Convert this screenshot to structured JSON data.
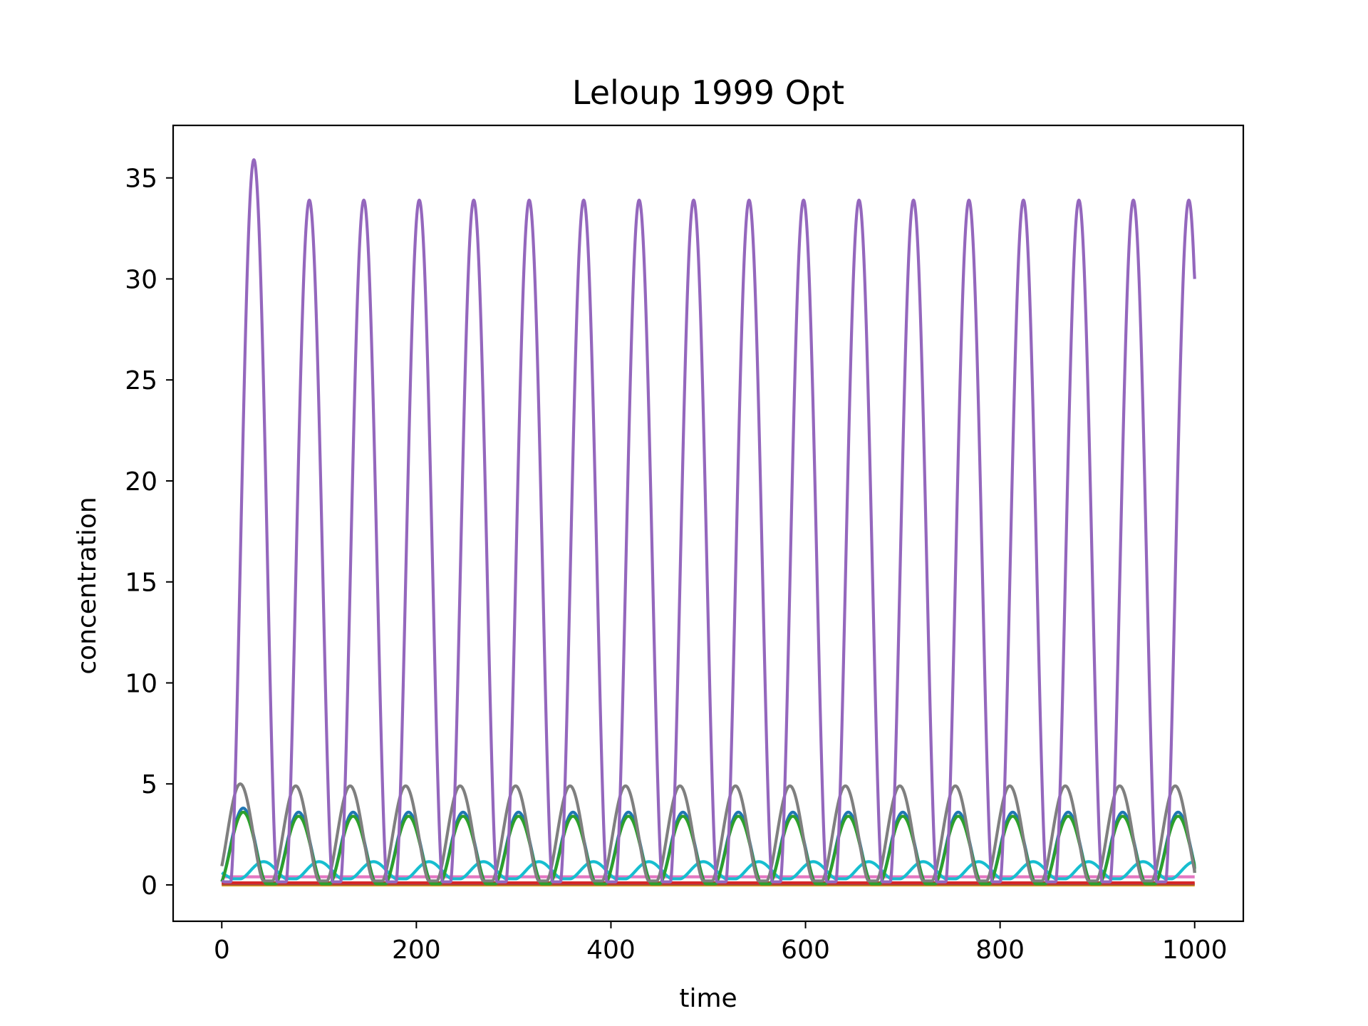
{
  "chart_data": {
    "type": "line",
    "title": "Leloup 1999 Opt",
    "xlabel": "time",
    "ylabel": "concentration",
    "xlim": [
      -50,
      1050
    ],
    "ylim": [
      -1.8,
      37.6
    ],
    "xticks": [
      0,
      200,
      400,
      600,
      800,
      1000
    ],
    "yticks": [
      0,
      5,
      10,
      15,
      20,
      25,
      30,
      35
    ],
    "xtick_labels": [
      "0",
      "200",
      "400",
      "600",
      "800",
      "1000"
    ],
    "ytick_labels": [
      "0",
      "5",
      "10",
      "15",
      "20",
      "25",
      "30",
      "35"
    ],
    "grid": false,
    "legend": "none",
    "period": 56.5,
    "series": [
      {
        "color": "#9467bd",
        "peak_times": [
          33,
          90,
          146,
          203,
          259,
          316,
          372,
          429,
          485,
          542,
          598,
          655,
          711,
          768,
          824,
          881,
          937,
          994
        ],
        "peak_values": [
          35.9,
          33.9,
          33.9,
          33.9,
          33.9,
          33.9,
          33.9,
          33.9,
          33.9,
          33.9,
          33.9,
          33.9,
          33.9,
          33.9,
          33.9,
          33.9,
          33.9,
          33.9
        ],
        "min_value": 0.15,
        "end_value": 30.0,
        "start_value": 0.2
      },
      {
        "color": "#7f7f7f",
        "peak_times": [
          19,
          76,
          132,
          189,
          245,
          302,
          358,
          415,
          471,
          528,
          584,
          641,
          697,
          754,
          810,
          867,
          923,
          980
        ],
        "peak_values": [
          5.0,
          4.9,
          4.9,
          4.9,
          4.9,
          4.9,
          4.9,
          4.9,
          4.9,
          4.9,
          4.9,
          4.9,
          4.9,
          4.9,
          4.9,
          4.9,
          4.9,
          4.9
        ],
        "min_value": 0.2,
        "end_value": 0.6,
        "start_value": 0.8
      },
      {
        "color": "#1f77b4",
        "peak_times": [
          22,
          79,
          135,
          192,
          248,
          305,
          361,
          418,
          474,
          531,
          587,
          644,
          700,
          757,
          813,
          870,
          926,
          983
        ],
        "peak_values": [
          3.8,
          3.6,
          3.6,
          3.6,
          3.6,
          3.6,
          3.6,
          3.6,
          3.6,
          3.6,
          3.6,
          3.6,
          3.6,
          3.6,
          3.6,
          3.6,
          3.6,
          3.6
        ],
        "min_value": 0.05,
        "end_value": 0.8,
        "start_value": 0.5
      },
      {
        "color": "#2ca02c",
        "peak_times": [
          22,
          79,
          135,
          192,
          248,
          305,
          361,
          418,
          474,
          531,
          587,
          644,
          700,
          757,
          813,
          870,
          926,
          983
        ],
        "peak_values": [
          3.6,
          3.4,
          3.4,
          3.4,
          3.4,
          3.4,
          3.4,
          3.4,
          3.4,
          3.4,
          3.4,
          3.4,
          3.4,
          3.4,
          3.4,
          3.4,
          3.4,
          3.4
        ],
        "min_value": 0.05,
        "end_value": 0.6,
        "start_value": 0.3
      },
      {
        "color": "#17becf",
        "peak_times": [
          43,
          100,
          156,
          213,
          269,
          326,
          382,
          439,
          495,
          552,
          608,
          665,
          721,
          778,
          834,
          891,
          947,
          1000
        ],
        "peak_values": [
          1.15,
          1.15,
          1.15,
          1.15,
          1.15,
          1.15,
          1.15,
          1.15,
          1.15,
          1.15,
          1.15,
          1.15,
          1.15,
          1.15,
          1.15,
          1.15,
          1.15,
          1.15
        ],
        "min_value": 0.3,
        "end_value": 1.15,
        "start_value": 0.6
      },
      {
        "color": "#e377c2",
        "constant": 0.4
      },
      {
        "color": "#d62728",
        "constant": 0.1
      },
      {
        "color": "#8c564b",
        "constant": 0.05
      },
      {
        "color": "#ff7f0e",
        "constant": 0.02
      },
      {
        "color": "#bcbd22",
        "constant": 0.0
      }
    ]
  }
}
